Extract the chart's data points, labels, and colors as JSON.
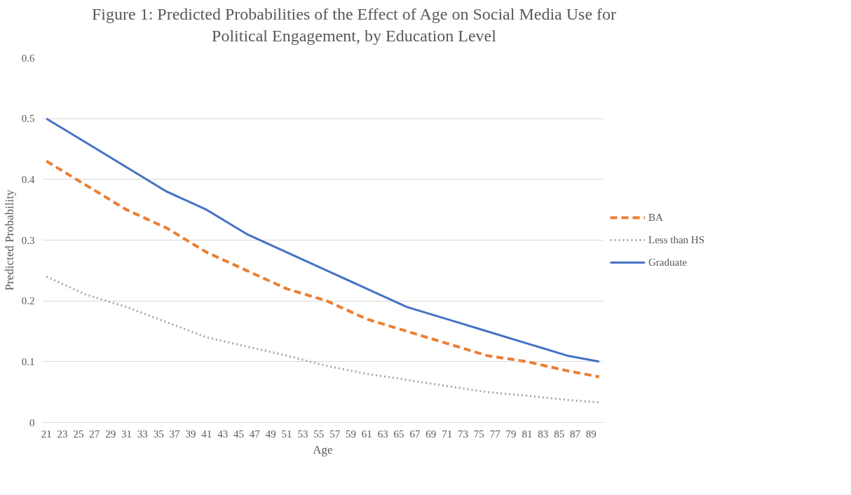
{
  "chart_data": {
    "type": "line",
    "title": "Figure 1: Predicted Probabilities of the Effect of Age on Social Media Use for\nPolitical Engagement, by Education Level",
    "xlabel": "Age",
    "ylabel": "Predicted Probability",
    "xlim": [
      20.5,
      90.5
    ],
    "xticks": [
      21,
      23,
      25,
      27,
      29,
      31,
      33,
      35,
      37,
      39,
      41,
      43,
      45,
      47,
      49,
      51,
      53,
      55,
      57,
      59,
      61,
      63,
      65,
      67,
      69,
      71,
      73,
      75,
      77,
      79,
      81,
      83,
      85,
      87,
      89
    ],
    "ylim": [
      0,
      0.6
    ],
    "yticks": [
      0,
      0.1,
      0.2,
      0.3,
      0.4,
      0.5,
      0.6
    ],
    "x": [
      21,
      26,
      31,
      36,
      41,
      46,
      51,
      56,
      61,
      66,
      71,
      76,
      81,
      86,
      90
    ],
    "grid": "y",
    "legend": "right",
    "series": [
      {
        "name": "BA",
        "color": "#ed7d31",
        "line_style": "dashed",
        "values": [
          0.43,
          0.39,
          0.35,
          0.32,
          0.28,
          0.25,
          0.22,
          0.2,
          0.17,
          0.15,
          0.13,
          0.11,
          0.1,
          0.085,
          0.075
        ]
      },
      {
        "name": "Less than HS",
        "color": "#a5a5a5",
        "line_style": "dotted",
        "values": [
          0.24,
          0.21,
          0.19,
          0.165,
          0.14,
          0.125,
          0.11,
          0.093,
          0.08,
          0.07,
          0.06,
          0.05,
          0.044,
          0.037,
          0.033
        ]
      },
      {
        "name": "Graduate",
        "color": "#4472c4",
        "line_style": "solid",
        "values": [
          0.5,
          0.46,
          0.42,
          0.38,
          0.35,
          0.31,
          0.28,
          0.25,
          0.22,
          0.19,
          0.17,
          0.15,
          0.13,
          0.11,
          0.1
        ]
      }
    ]
  }
}
